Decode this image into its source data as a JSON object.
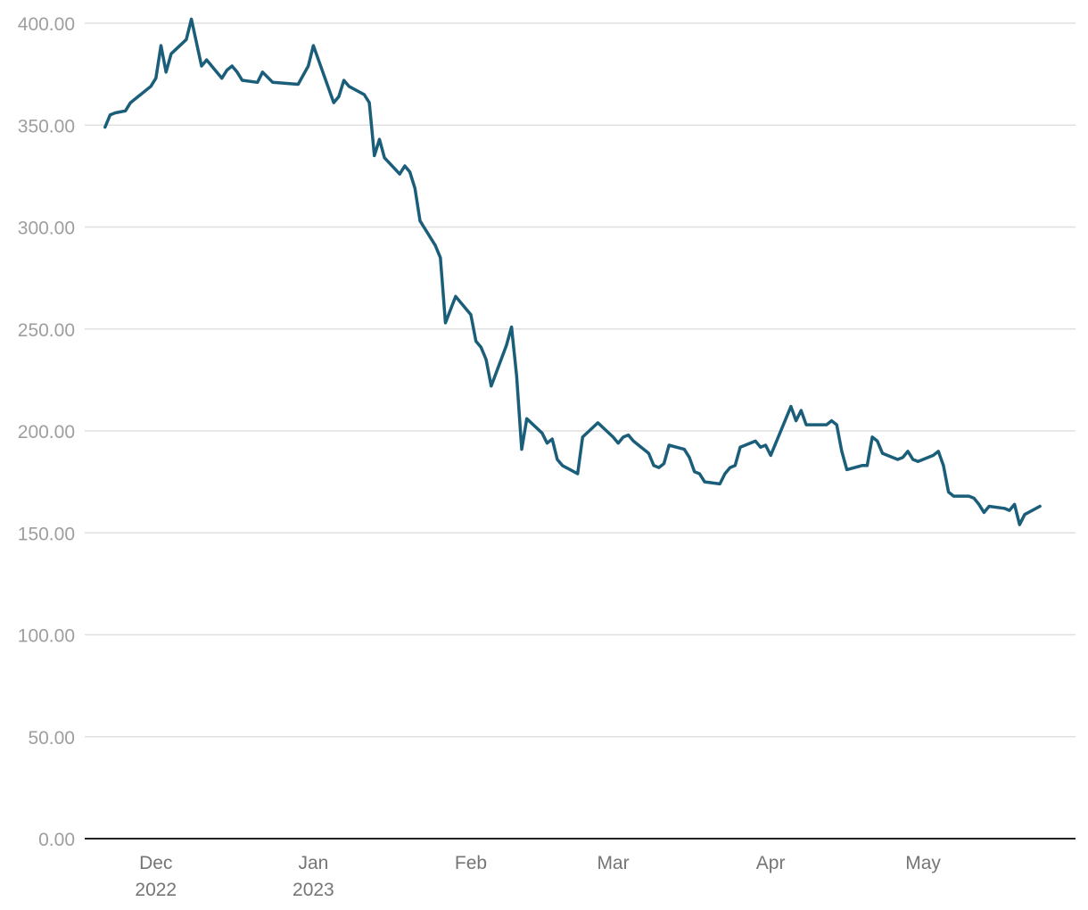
{
  "chart_data": {
    "type": "line",
    "title": "",
    "xlabel": "",
    "ylabel": "",
    "ylim": [
      0,
      400
    ],
    "y_ticks": [
      "0.00",
      "50.00",
      "100.00",
      "150.00",
      "200.00",
      "250.00",
      "300.00",
      "350.00",
      "400.00"
    ],
    "x_ticks": [
      {
        "date": "2022-12-01",
        "label": "Dec",
        "sublabel": "2022"
      },
      {
        "date": "2023-01-01",
        "label": "Jan",
        "sublabel": "2023"
      },
      {
        "date": "2023-02-01",
        "label": "Feb",
        "sublabel": ""
      },
      {
        "date": "2023-03-01",
        "label": "Mar",
        "sublabel": ""
      },
      {
        "date": "2023-04-01",
        "label": "Apr",
        "sublabel": ""
      },
      {
        "date": "2023-05-01",
        "label": "May",
        "sublabel": ""
      }
    ],
    "xlim": [
      "2022-11-17",
      "2023-05-31"
    ],
    "grid": true,
    "line_color": "#1b5e7a",
    "series": [
      {
        "values": [
          [
            "2022-11-21",
            349
          ],
          [
            "2022-11-22",
            355
          ],
          [
            "2022-11-23",
            356
          ],
          [
            "2022-11-25",
            357
          ],
          [
            "2022-11-26",
            361
          ],
          [
            "2022-11-28",
            365
          ],
          [
            "2022-11-30",
            369
          ],
          [
            "2022-12-01",
            373
          ],
          [
            "2022-12-02",
            389
          ],
          [
            "2022-12-03",
            376
          ],
          [
            "2022-12-04",
            385
          ],
          [
            "2022-12-07",
            392
          ],
          [
            "2022-12-08",
            402
          ],
          [
            "2022-12-10",
            379
          ],
          [
            "2022-12-11",
            382
          ],
          [
            "2022-12-14",
            373
          ],
          [
            "2022-12-15",
            377
          ],
          [
            "2022-12-16",
            379
          ],
          [
            "2022-12-17",
            376
          ],
          [
            "2022-12-18",
            372
          ],
          [
            "2022-12-21",
            371
          ],
          [
            "2022-12-22",
            376
          ],
          [
            "2022-12-24",
            371
          ],
          [
            "2022-12-29",
            370
          ],
          [
            "2022-12-31",
            379
          ],
          [
            "2023-01-01",
            389
          ],
          [
            "2023-01-05",
            361
          ],
          [
            "2023-01-06",
            364
          ],
          [
            "2023-01-07",
            372
          ],
          [
            "2023-01-08",
            369
          ],
          [
            "2023-01-11",
            365
          ],
          [
            "2023-01-12",
            361
          ],
          [
            "2023-01-13",
            335
          ],
          [
            "2023-01-14",
            343
          ],
          [
            "2023-01-15",
            334
          ],
          [
            "2023-01-18",
            326
          ],
          [
            "2023-01-19",
            330
          ],
          [
            "2023-01-20",
            327
          ],
          [
            "2023-01-21",
            319
          ],
          [
            "2023-01-22",
            303
          ],
          [
            "2023-01-25",
            291
          ],
          [
            "2023-01-26",
            285
          ],
          [
            "2023-01-27",
            253
          ],
          [
            "2023-01-29",
            266
          ],
          [
            "2023-02-01",
            257
          ],
          [
            "2023-02-02",
            244
          ],
          [
            "2023-02-03",
            241
          ],
          [
            "2023-02-04",
            235
          ],
          [
            "2023-02-05",
            222
          ],
          [
            "2023-02-08",
            242
          ],
          [
            "2023-02-09",
            251
          ],
          [
            "2023-02-10",
            227
          ],
          [
            "2023-02-11",
            191
          ],
          [
            "2023-02-12",
            206
          ],
          [
            "2023-02-15",
            199
          ],
          [
            "2023-02-16",
            194
          ],
          [
            "2023-02-17",
            196
          ],
          [
            "2023-02-18",
            186
          ],
          [
            "2023-02-19",
            183
          ],
          [
            "2023-02-22",
            179
          ],
          [
            "2023-02-23",
            197
          ],
          [
            "2023-02-26",
            204
          ],
          [
            "2023-03-01",
            197
          ],
          [
            "2023-03-02",
            194
          ],
          [
            "2023-03-03",
            197
          ],
          [
            "2023-03-04",
            198
          ],
          [
            "2023-03-05",
            195
          ],
          [
            "2023-03-08",
            189
          ],
          [
            "2023-03-09",
            183
          ],
          [
            "2023-03-10",
            182
          ],
          [
            "2023-03-11",
            184
          ],
          [
            "2023-03-12",
            193
          ],
          [
            "2023-03-15",
            191
          ],
          [
            "2023-03-16",
            187
          ],
          [
            "2023-03-17",
            180
          ],
          [
            "2023-03-18",
            179
          ],
          [
            "2023-03-19",
            175
          ],
          [
            "2023-03-22",
            174
          ],
          [
            "2023-03-23",
            179
          ],
          [
            "2023-03-24",
            182
          ],
          [
            "2023-03-25",
            183
          ],
          [
            "2023-03-26",
            192
          ],
          [
            "2023-03-29",
            195
          ],
          [
            "2023-03-30",
            192
          ],
          [
            "2023-03-31",
            193
          ],
          [
            "2023-04-01",
            188
          ],
          [
            "2023-04-05",
            212
          ],
          [
            "2023-04-06",
            205
          ],
          [
            "2023-04-07",
            210
          ],
          [
            "2023-04-08",
            203
          ],
          [
            "2023-04-12",
            203
          ],
          [
            "2023-04-13",
            205
          ],
          [
            "2023-04-14",
            203
          ],
          [
            "2023-04-15",
            190
          ],
          [
            "2023-04-16",
            181
          ],
          [
            "2023-04-19",
            183
          ],
          [
            "2023-04-20",
            183
          ],
          [
            "2023-04-21",
            197
          ],
          [
            "2023-04-22",
            195
          ],
          [
            "2023-04-23",
            189
          ],
          [
            "2023-04-26",
            186
          ],
          [
            "2023-04-27",
            187
          ],
          [
            "2023-04-28",
            190
          ],
          [
            "2023-04-29",
            186
          ],
          [
            "2023-04-30",
            185
          ],
          [
            "2023-05-03",
            188
          ],
          [
            "2023-05-04",
            190
          ],
          [
            "2023-05-05",
            183
          ],
          [
            "2023-05-06",
            170
          ],
          [
            "2023-05-07",
            168
          ],
          [
            "2023-05-10",
            168
          ],
          [
            "2023-05-11",
            167
          ],
          [
            "2023-05-12",
            164
          ],
          [
            "2023-05-13",
            160
          ],
          [
            "2023-05-14",
            163
          ],
          [
            "2023-05-17",
            162
          ],
          [
            "2023-05-18",
            161
          ],
          [
            "2023-05-19",
            164
          ],
          [
            "2023-05-20",
            154
          ],
          [
            "2023-05-21",
            159
          ],
          [
            "2023-05-24",
            163
          ]
        ]
      }
    ]
  }
}
